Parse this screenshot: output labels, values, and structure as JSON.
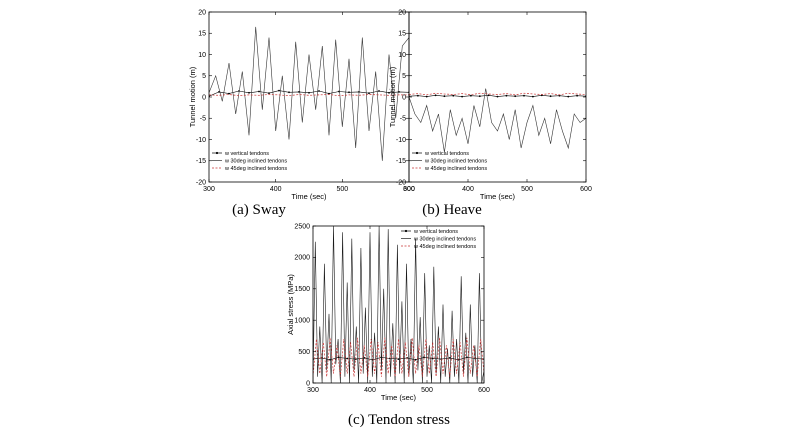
{
  "chart_data": [
    {
      "type": "line",
      "caption": "(a)  Sway",
      "xlabel": "Time (sec)",
      "ylabel": "Tunnel motion (m)",
      "xlim": [
        300,
        600
      ],
      "ylim": [
        -20,
        20
      ],
      "xticks": [
        300,
        400,
        500,
        600
      ],
      "yticks": [
        20,
        15,
        10,
        5,
        0,
        -5,
        -10,
        -15,
        -20
      ],
      "legend_position": "bottom-left",
      "series": [
        {
          "name": "w vertical tendons",
          "color": "#000000",
          "marker": "dot",
          "x": [
            300,
            315,
            330,
            345,
            360,
            375,
            390,
            405,
            420,
            435,
            450,
            465,
            480,
            495,
            510,
            525,
            540,
            555,
            570,
            585,
            600
          ],
          "y": [
            0.2,
            1.2,
            0.8,
            1.4,
            1.0,
            1.3,
            0.9,
            1.5,
            1.1,
            1.2,
            1.0,
            1.4,
            0.8,
            1.3,
            1.1,
            1.2,
            0.9,
            1.4,
            1.0,
            1.2,
            1.1
          ]
        },
        {
          "name": "w 30deg inclined tendons",
          "color": "#333333",
          "marker": "none",
          "x": [
            300,
            310,
            320,
            330,
            340,
            350,
            360,
            370,
            380,
            390,
            400,
            410,
            420,
            430,
            440,
            450,
            460,
            470,
            480,
            490,
            500,
            510,
            520,
            530,
            540,
            550,
            560,
            570,
            580,
            590,
            600
          ],
          "y": [
            1,
            5,
            -1,
            8,
            -4,
            6,
            -9,
            16.5,
            -3,
            14,
            -8,
            5,
            -10,
            13,
            -6,
            10,
            -3,
            12,
            -9,
            13.5,
            -7,
            9,
            -12,
            14,
            -8,
            6,
            -15,
            10,
            -5,
            12,
            14
          ]
        },
        {
          "name": "w 45deg inclined tendons",
          "color": "#c83232",
          "marker": "none",
          "dash": true,
          "x": [
            300,
            315,
            330,
            345,
            360,
            375,
            390,
            405,
            420,
            435,
            450,
            465,
            480,
            495,
            510,
            525,
            540,
            555,
            570,
            585,
            600
          ],
          "y": [
            0.5,
            0.4,
            0.6,
            0.3,
            0.5,
            0.4,
            0.6,
            0.5,
            0.3,
            0.6,
            0.4,
            0.5,
            0.6,
            0.3,
            0.5,
            0.4,
            0.6,
            0.5,
            0.4,
            0.5,
            0.5
          ]
        }
      ]
    },
    {
      "type": "line",
      "caption": "(b)  Heave",
      "xlabel": "Time (sec)",
      "ylabel": "Tunnel motion (m)",
      "xlim": [
        300,
        600
      ],
      "ylim": [
        -20,
        20
      ],
      "xticks": [
        300,
        400,
        500,
        600
      ],
      "yticks": [
        20,
        15,
        10,
        5,
        0,
        -5,
        -10,
        -15,
        -20
      ],
      "legend_position": "bottom-left",
      "series": [
        {
          "name": "w vertical tendons",
          "color": "#000000",
          "marker": "dot",
          "x": [
            300,
            315,
            330,
            345,
            360,
            375,
            390,
            405,
            420,
            435,
            450,
            465,
            480,
            495,
            510,
            525,
            540,
            555,
            570,
            585,
            600
          ],
          "y": [
            0.2,
            0.3,
            0.1,
            0.4,
            0.2,
            0.3,
            0.1,
            0.3,
            0.2,
            0.4,
            0.1,
            0.3,
            0.2,
            0.3,
            0.1,
            0.4,
            0.2,
            0.3,
            0.1,
            0.3,
            0.2
          ]
        },
        {
          "name": "w 30deg inclined tendons",
          "color": "#333333",
          "marker": "none",
          "x": [
            300,
            310,
            320,
            330,
            340,
            350,
            360,
            370,
            380,
            390,
            400,
            410,
            420,
            430,
            440,
            450,
            460,
            470,
            480,
            490,
            500,
            510,
            520,
            530,
            540,
            550,
            560,
            570,
            580,
            590,
            600
          ],
          "y": [
            0,
            -4,
            -6,
            -2,
            -8,
            -4,
            -13,
            -3,
            -9,
            -5,
            -11,
            -2,
            -7,
            2,
            -6,
            -8,
            -4,
            -10,
            -3,
            -12,
            -6,
            -2,
            -9,
            -5,
            -11,
            -3,
            -8,
            -12,
            -4,
            -6,
            -5
          ]
        },
        {
          "name": "w 45deg inclined tendons",
          "color": "#c83232",
          "marker": "none",
          "dash": true,
          "x": [
            300,
            315,
            330,
            345,
            360,
            375,
            390,
            405,
            420,
            435,
            450,
            465,
            480,
            495,
            510,
            525,
            540,
            555,
            570,
            585,
            600
          ],
          "y": [
            0.6,
            0.8,
            0.5,
            0.9,
            0.7,
            0.6,
            0.8,
            0.5,
            0.9,
            0.7,
            0.6,
            0.8,
            0.5,
            0.9,
            0.7,
            0.6,
            0.8,
            0.5,
            0.9,
            0.7,
            0.6
          ]
        }
      ]
    },
    {
      "type": "line",
      "caption": "(c)  Tendon stress",
      "xlabel": "Time (sec)",
      "ylabel": "Axial stress (MPa)",
      "xlim": [
        300,
        600
      ],
      "ylim": [
        0,
        2500
      ],
      "xticks": [
        300,
        400,
        500,
        600
      ],
      "yticks": [
        2500,
        2000,
        1500,
        1000,
        500,
        0
      ],
      "legend_position": "top-right",
      "series": [
        {
          "name": "w vertical tendons",
          "color": "#000000",
          "marker": "dot",
          "x": [
            300,
            315,
            330,
            345,
            360,
            375,
            390,
            405,
            420,
            435,
            450,
            465,
            480,
            495,
            510,
            525,
            540,
            555,
            570,
            585,
            600
          ],
          "y": [
            380,
            400,
            370,
            410,
            390,
            380,
            400,
            370,
            410,
            390,
            380,
            400,
            370,
            410,
            390,
            380,
            400,
            370,
            410,
            390,
            380
          ]
        },
        {
          "name": "w 30deg inclined tendons",
          "color": "#1a1a1a",
          "marker": "none",
          "x": [
            300,
            304,
            308,
            312,
            316,
            320,
            324,
            328,
            332,
            336,
            340,
            344,
            348,
            352,
            356,
            360,
            364,
            368,
            372,
            376,
            380,
            384,
            388,
            392,
            396,
            400,
            404,
            408,
            412,
            416,
            420,
            424,
            428,
            432,
            436,
            440,
            444,
            448,
            452,
            456,
            460,
            464,
            468,
            472,
            476,
            480,
            484,
            488,
            492,
            496,
            500,
            504,
            508,
            512,
            516,
            520,
            524,
            528,
            532,
            536,
            540,
            544,
            548,
            552,
            556,
            560,
            564,
            568,
            572,
            576,
            580,
            584,
            588,
            592,
            596,
            600
          ],
          "y": [
            0,
            2250,
            100,
            900,
            0,
            1900,
            200,
            1100,
            0,
            2500,
            300,
            700,
            0,
            2400,
            100,
            1600,
            0,
            2300,
            200,
            900,
            0,
            2150,
            150,
            1200,
            0,
            2400,
            100,
            800,
            0,
            2500,
            200,
            1500,
            0,
            2450,
            100,
            950,
            0,
            2200,
            150,
            1300,
            0,
            1900,
            100,
            700,
            0,
            2300,
            200,
            1050,
            0,
            1750,
            100,
            600,
            0,
            1850,
            150,
            900,
            0,
            1250,
            100,
            550,
            0,
            1150,
            100,
            700,
            0,
            1700,
            150,
            800,
            0,
            1250,
            100,
            600,
            0,
            1750,
            0,
            200
          ]
        },
        {
          "name": "w 45deg inclined tendons",
          "color": "#c83232",
          "marker": "none",
          "dash": true,
          "x": [
            300,
            306,
            312,
            318,
            324,
            330,
            336,
            342,
            348,
            354,
            360,
            366,
            372,
            378,
            384,
            390,
            396,
            402,
            408,
            414,
            420,
            426,
            432,
            438,
            444,
            450,
            456,
            462,
            468,
            474,
            480,
            486,
            492,
            498,
            504,
            510,
            516,
            522,
            528,
            534,
            540,
            546,
            552,
            558,
            564,
            570,
            576,
            582,
            588,
            594,
            600
          ],
          "y": [
            100,
            700,
            150,
            650,
            100,
            720,
            150,
            600,
            100,
            700,
            150,
            650,
            100,
            720,
            150,
            600,
            100,
            700,
            150,
            650,
            100,
            720,
            150,
            600,
            100,
            700,
            150,
            650,
            100,
            720,
            150,
            600,
            100,
            700,
            150,
            650,
            100,
            720,
            150,
            600,
            100,
            700,
            150,
            650,
            100,
            720,
            150,
            600,
            100,
            700,
            150
          ]
        }
      ]
    }
  ]
}
